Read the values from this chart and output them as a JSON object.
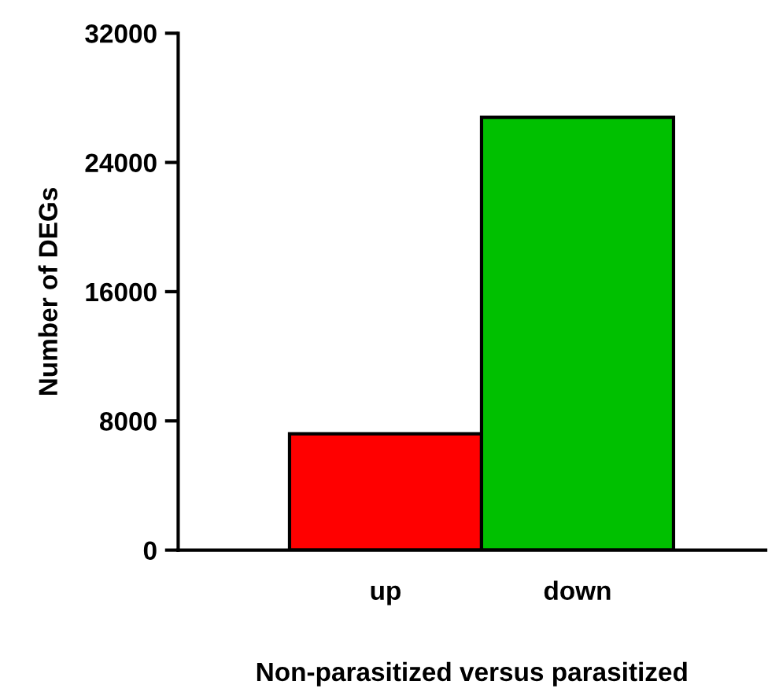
{
  "chart_data": {
    "type": "bar",
    "xlabel": "Non-parasitized versus parasitized",
    "ylabel": "Number of DEGs",
    "categories": [
      "up",
      "down"
    ],
    "values": [
      7200,
      26800
    ],
    "colors": [
      "#ff0000",
      "#00c000"
    ],
    "ylim": [
      0,
      32000
    ],
    "yticks": [
      0,
      8000,
      16000,
      24000,
      32000
    ],
    "grid": false,
    "legend": false
  }
}
